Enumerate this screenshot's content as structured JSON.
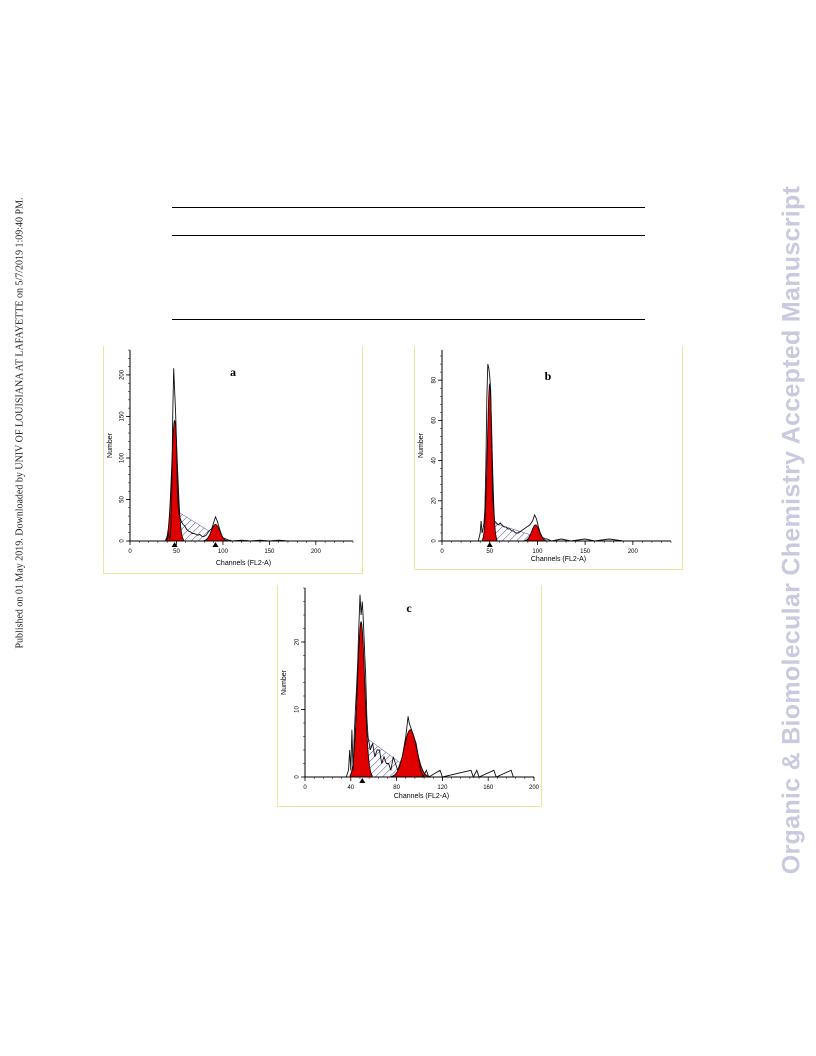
{
  "side_note": "Published on 01 May 2019. Downloaded by UNIV OF LOUISIANA AT LAFAYETTE on 5/7/2019 1:09:40 PM.",
  "watermark": "Organic & Biomolecular Chemistry Accepted Manuscript",
  "colors": {
    "g1_g2_fill": "#e00000",
    "s_phase_hatch": "#3a3aa0",
    "frame": "#f3e39a"
  },
  "chart_data": [
    {
      "type": "area",
      "panel_label": "a",
      "xlabel": "Channels (FL2-A)",
      "ylabel": "Number",
      "xlim": [
        0,
        240
      ],
      "ylim": [
        0,
        230
      ],
      "xticks": [
        0,
        50,
        100,
        150,
        200
      ],
      "yticks": [
        0,
        50,
        100,
        150,
        200
      ],
      "markers": [
        48,
        92
      ],
      "g1_peak": {
        "center": 48,
        "height": 145,
        "sigma": 3.2
      },
      "g2_peak": {
        "center": 92,
        "height": 20,
        "sigma": 4.5
      },
      "s_phase": {
        "start": 45,
        "end": 95,
        "start_height": 40,
        "end_height": 5
      },
      "histogram": [
        [
          38,
          0
        ],
        [
          40,
          2
        ],
        [
          41,
          13
        ],
        [
          42,
          4
        ],
        [
          43,
          3
        ],
        [
          44,
          15
        ],
        [
          45,
          58
        ],
        [
          46,
          150
        ],
        [
          47,
          208
        ],
        [
          48,
          182
        ],
        [
          49,
          158
        ],
        [
          50,
          120
        ],
        [
          51,
          60
        ],
        [
          52,
          40
        ],
        [
          53,
          32
        ],
        [
          55,
          24
        ],
        [
          57,
          20
        ],
        [
          59,
          18
        ],
        [
          61,
          14
        ],
        [
          63,
          12
        ],
        [
          65,
          11
        ],
        [
          67,
          9
        ],
        [
          69,
          9
        ],
        [
          71,
          8
        ],
        [
          73,
          7
        ],
        [
          75,
          8
        ],
        [
          77,
          6
        ],
        [
          79,
          5
        ],
        [
          82,
          7
        ],
        [
          85,
          12
        ],
        [
          88,
          15
        ],
        [
          90,
          22
        ],
        [
          92,
          29
        ],
        [
          94,
          24
        ],
        [
          96,
          16
        ],
        [
          98,
          9
        ],
        [
          100,
          4
        ],
        [
          102,
          3
        ],
        [
          104,
          2
        ],
        [
          106,
          1
        ],
        [
          108,
          1
        ],
        [
          110,
          0
        ],
        [
          120,
          1
        ],
        [
          130,
          0
        ],
        [
          140,
          1
        ],
        [
          150,
          0
        ],
        [
          160,
          1
        ],
        [
          170,
          0
        ],
        [
          180,
          0
        ],
        [
          200,
          0
        ],
        [
          230,
          0
        ]
      ]
    },
    {
      "type": "area",
      "panel_label": "b",
      "xlabel": "Channels (FL2-A)",
      "ylabel": "Number",
      "xlim": [
        0,
        240
      ],
      "ylim": [
        0,
        95
      ],
      "xticks": [
        0,
        50,
        100,
        150,
        200
      ],
      "yticks": [
        0,
        20,
        40,
        60,
        80
      ],
      "markers": [
        50
      ],
      "g1_peak": {
        "center": 50,
        "height": 78,
        "sigma": 2.5
      },
      "g2_peak": {
        "center": 98,
        "height": 8,
        "sigma": 4.0
      },
      "s_phase": {
        "start": 47,
        "end": 100,
        "start_height": 10,
        "end_height": 2
      },
      "histogram": [
        [
          38,
          0
        ],
        [
          40,
          4
        ],
        [
          41,
          10
        ],
        [
          42,
          4
        ],
        [
          43,
          6
        ],
        [
          44,
          9
        ],
        [
          45,
          16
        ],
        [
          46,
          38
        ],
        [
          47,
          70
        ],
        [
          48,
          88
        ],
        [
          49,
          86
        ],
        [
          50,
          82
        ],
        [
          51,
          75
        ],
        [
          52,
          50
        ],
        [
          53,
          22
        ],
        [
          55,
          10
        ],
        [
          57,
          9
        ],
        [
          59,
          8
        ],
        [
          61,
          9
        ],
        [
          63,
          8
        ],
        [
          65,
          7
        ],
        [
          67,
          7
        ],
        [
          69,
          6
        ],
        [
          71,
          6
        ],
        [
          73,
          5
        ],
        [
          75,
          5
        ],
        [
          77,
          4
        ],
        [
          80,
          4
        ],
        [
          83,
          5
        ],
        [
          86,
          6
        ],
        [
          89,
          7
        ],
        [
          92,
          8
        ],
        [
          95,
          10
        ],
        [
          97,
          13
        ],
        [
          99,
          11
        ],
        [
          101,
          7
        ],
        [
          103,
          4
        ],
        [
          105,
          2
        ],
        [
          108,
          1
        ],
        [
          110,
          1
        ],
        [
          115,
          0
        ],
        [
          125,
          1
        ],
        [
          135,
          0
        ],
        [
          150,
          1
        ],
        [
          160,
          0
        ],
        [
          175,
          1
        ],
        [
          190,
          0
        ],
        [
          230,
          0
        ]
      ]
    },
    {
      "type": "area",
      "panel_label": "c",
      "xlabel": "Channels (FL2-A)",
      "ylabel": "Number",
      "xlim": [
        0,
        200
      ],
      "ylim": [
        0,
        28
      ],
      "xticks": [
        0,
        40,
        80,
        120,
        160,
        200
      ],
      "yticks": [
        0,
        10,
        20
      ],
      "markers": [
        50
      ],
      "g1_peak": {
        "center": 49,
        "height": 23,
        "sigma": 3.2
      },
      "g2_peak": {
        "center": 92,
        "height": 7,
        "sigma": 5.5
      },
      "s_phase": {
        "start": 44,
        "end": 92,
        "start_height": 7,
        "end_height": 1
      },
      "histogram": [
        [
          36,
          0
        ],
        [
          38,
          1
        ],
        [
          39,
          4
        ],
        [
          40,
          1
        ],
        [
          41,
          7
        ],
        [
          42,
          1
        ],
        [
          43,
          6
        ],
        [
          44,
          10
        ],
        [
          45,
          13
        ],
        [
          46,
          17
        ],
        [
          47,
          22
        ],
        [
          48,
          27
        ],
        [
          49,
          24
        ],
        [
          50,
          26
        ],
        [
          51,
          23
        ],
        [
          52,
          19
        ],
        [
          53,
          15
        ],
        [
          54,
          9
        ],
        [
          55,
          6
        ],
        [
          57,
          4
        ],
        [
          59,
          5
        ],
        [
          61,
          3
        ],
        [
          63,
          4
        ],
        [
          65,
          4
        ],
        [
          67,
          2
        ],
        [
          69,
          3
        ],
        [
          71,
          2
        ],
        [
          73,
          2
        ],
        [
          75,
          1
        ],
        [
          77,
          3
        ],
        [
          79,
          2
        ],
        [
          81,
          1
        ],
        [
          83,
          2
        ],
        [
          85,
          3
        ],
        [
          87,
          5
        ],
        [
          88,
          6
        ],
        [
          90,
          9
        ],
        [
          91,
          8
        ],
        [
          93,
          7
        ],
        [
          95,
          6
        ],
        [
          97,
          5
        ],
        [
          99,
          3
        ],
        [
          101,
          1
        ],
        [
          103,
          0
        ],
        [
          106,
          1
        ],
        [
          108,
          0
        ],
        [
          118,
          1
        ],
        [
          120,
          0
        ],
        [
          145,
          1
        ],
        [
          147,
          0
        ],
        [
          150,
          1
        ],
        [
          152,
          0
        ],
        [
          165,
          1
        ],
        [
          167,
          0
        ],
        [
          180,
          1
        ],
        [
          182,
          0
        ],
        [
          200,
          0
        ]
      ]
    }
  ]
}
